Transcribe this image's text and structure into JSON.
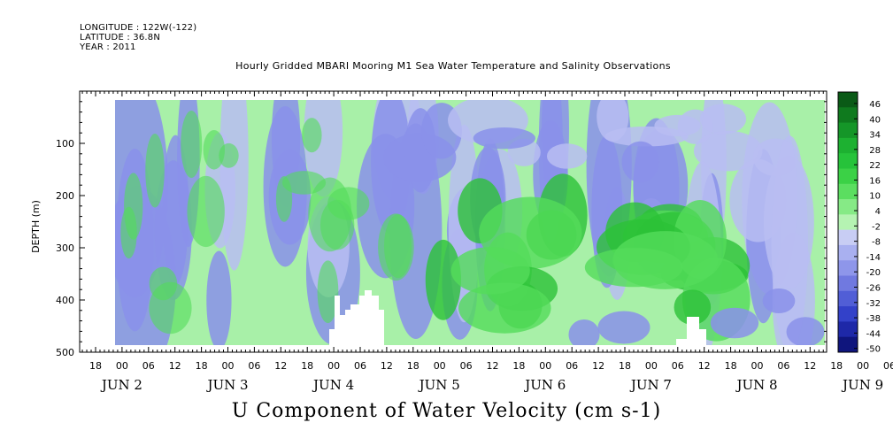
{
  "header": {
    "longitude": "LONGITUDE : 122W(-122)",
    "latitude": "LATITUDE : 36.8N",
    "year": "YEAR : 2011",
    "title": "Hourly Gridded MBARI Mooring M1 Sea Water Temperature and Salinity Observations"
  },
  "footer": {
    "variable_title": "U Component of Water Velocity (cm s-1)"
  },
  "colors": {
    "negative_light": "#b9bdf2",
    "negative_mid": "#8a91ea",
    "positive_light": "#a8f0a8",
    "positive_mid": "#54dc5a",
    "positive_dark": "#2cc237",
    "missing": "#ffffff"
  },
  "chart_data": {
    "type": "heatmap",
    "title": "Hourly Gridded MBARI Mooring M1 Sea Water Temperature and Salinity Observations",
    "xlabel": "U Component of Water Velocity (cm s-1)",
    "ylabel": "DEPTH (m)",
    "ylim": [
      500,
      0
    ],
    "y_ticks": [
      100,
      200,
      300,
      400,
      500
    ],
    "y_tick_labels": [
      "100",
      "200",
      "300",
      "400",
      "500"
    ],
    "x_hour_labels": [
      "18",
      "00",
      "06",
      "12",
      "18",
      "00",
      "06",
      "12",
      "18",
      "00",
      "06",
      "12",
      "18",
      "00",
      "06",
      "12",
      "18",
      "00",
      "06",
      "12",
      "18",
      "00",
      "06",
      "12",
      "18",
      "00",
      "06",
      "12",
      "18",
      "00",
      "06",
      "12"
    ],
    "x_day_labels": [
      "JUN  2",
      "JUN  3",
      "JUN  4",
      "JUN  5",
      "JUN  6",
      "JUN  7",
      "JUN  8",
      "JUN  9"
    ],
    "colorbar": {
      "labels": [
        "46",
        "40",
        "34",
        "28",
        "22",
        "16",
        "10",
        "4",
        "-2",
        "-8",
        "-14",
        "-20",
        "-26",
        "-32",
        "-38",
        "-44",
        "-50"
      ],
      "colors": [
        "#0a5a16",
        "#0f7a1e",
        "#159628",
        "#1db131",
        "#26c33a",
        "#3bd146",
        "#5bde60",
        "#86ea86",
        "#b5f3b2",
        "#c8cdf4",
        "#a9b0f0",
        "#8e96ea",
        "#7079e0",
        "#515ed6",
        "#3341c9",
        "#1e28a8",
        "#0f157d"
      ]
    },
    "legend": "right",
    "grid": false
  }
}
